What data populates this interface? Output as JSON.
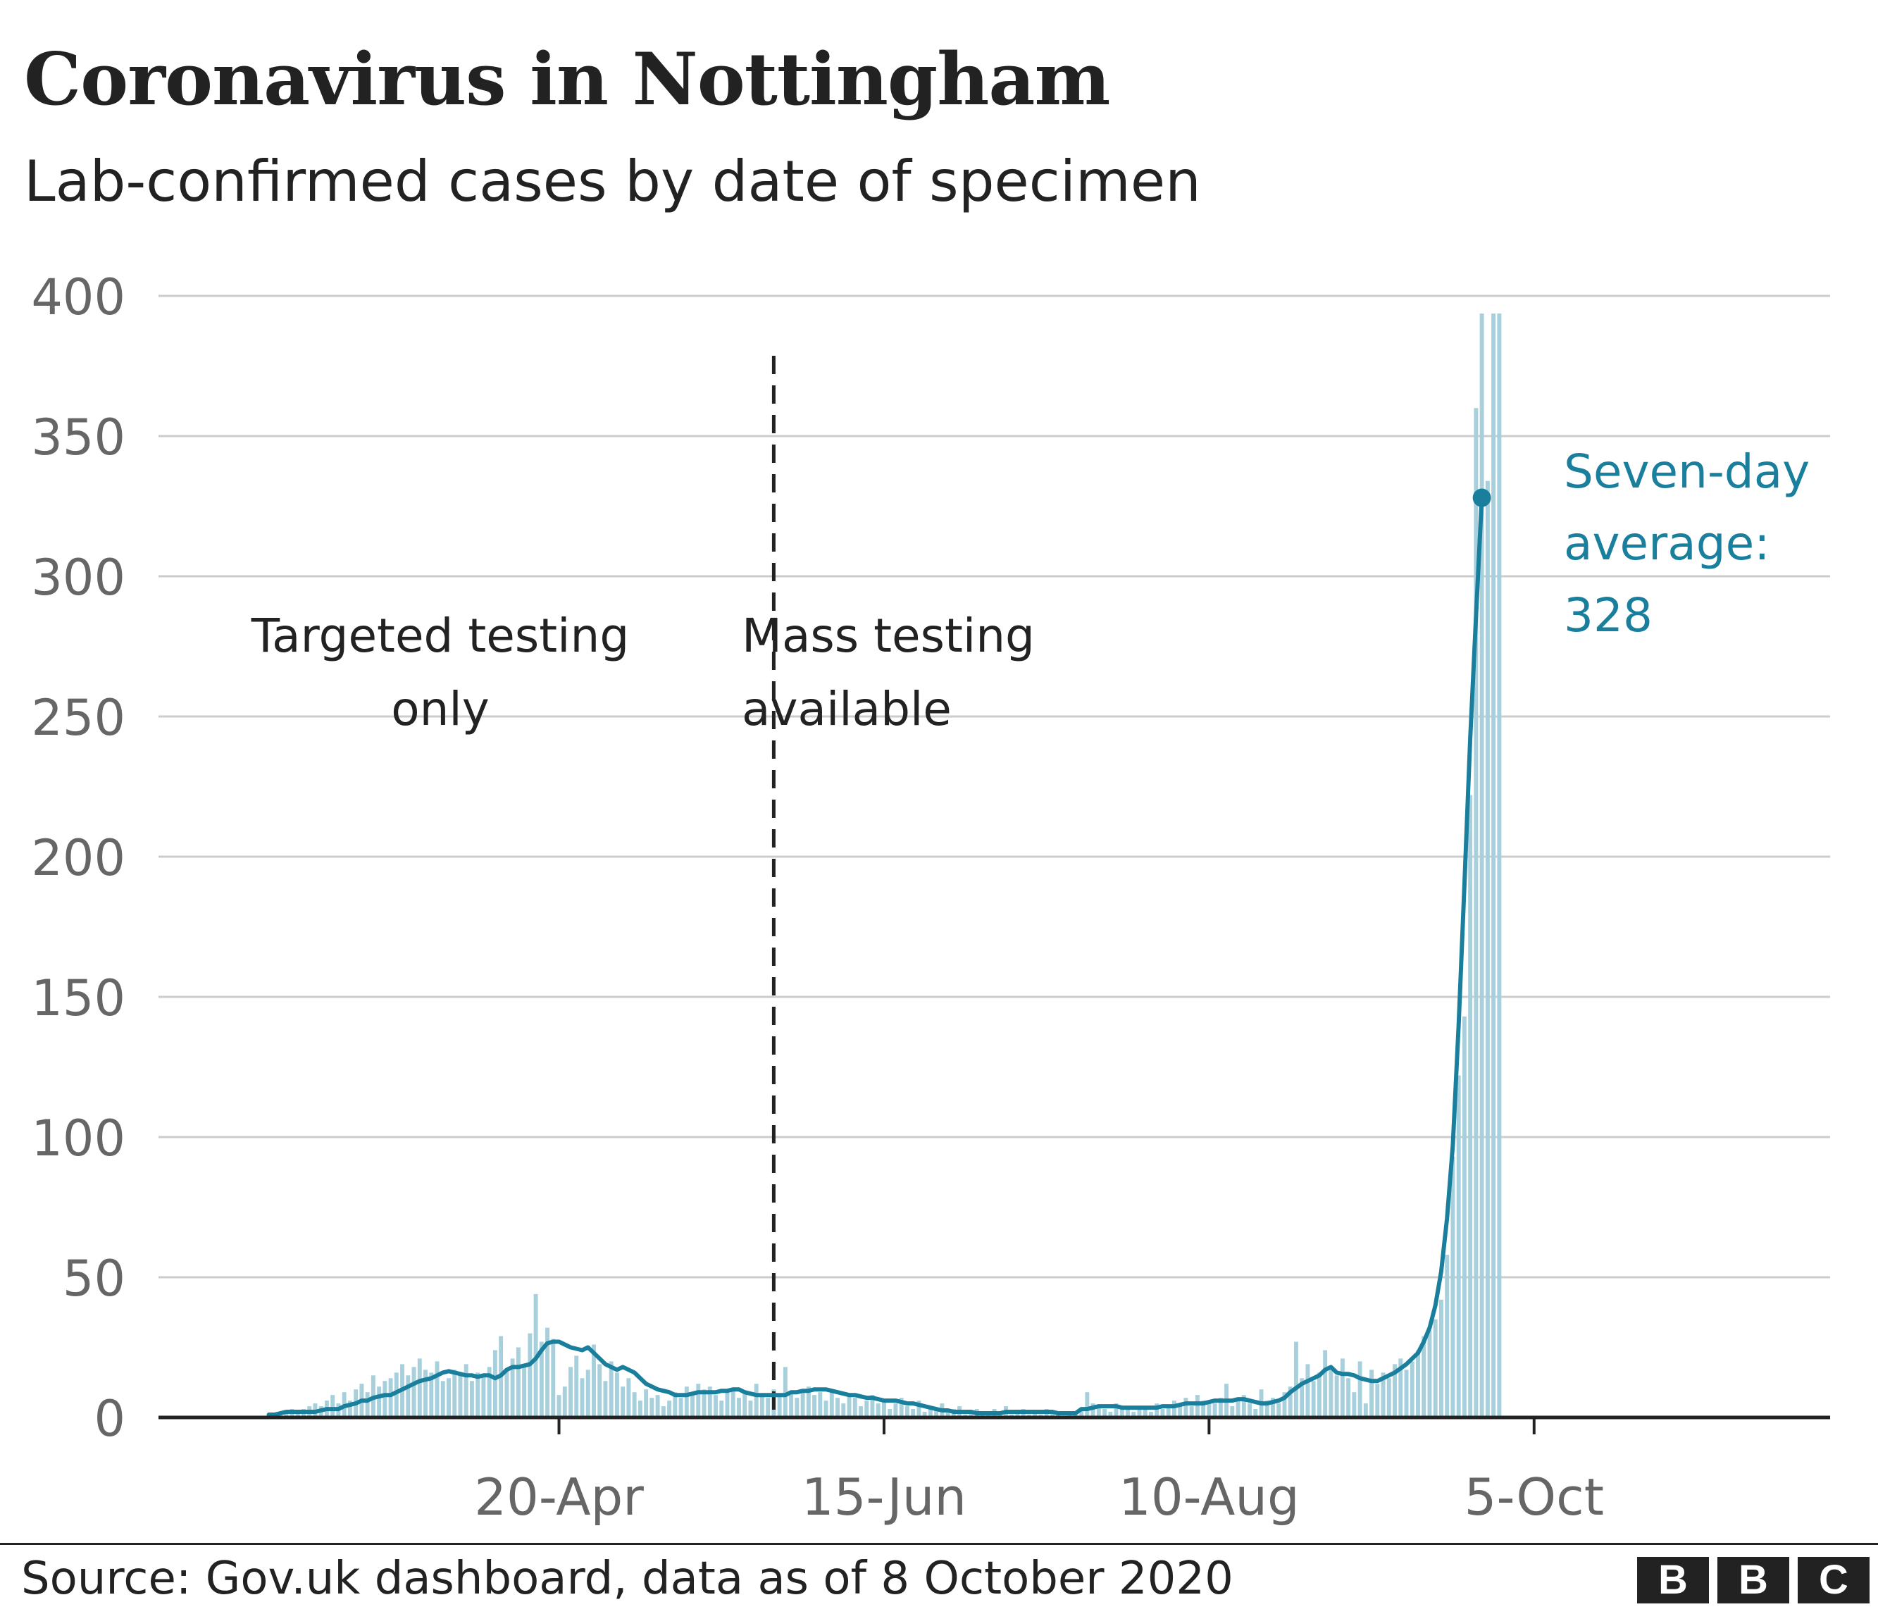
{
  "title": "Coronavirus in Nottingham",
  "subtitle": "Lab-confirmed cases by date of specimen",
  "source": "Source: Gov.uk dashboard, data as of 8 October 2020",
  "logo": [
    "B",
    "B",
    "C"
  ],
  "colors": {
    "bars": "#a8d0dc",
    "average_line": "#1a7f9c",
    "text": "#222222",
    "axis_labels": "#666666",
    "grid": "#cccccc"
  },
  "chart_data": {
    "type": "bar",
    "x_start": "2020-03-01",
    "xlim": [
      "2020-02-11",
      "2020-11-25"
    ],
    "ylim": [
      0,
      400
    ],
    "yticks": [
      0,
      50,
      100,
      150,
      200,
      250,
      300,
      350,
      400
    ],
    "xticks": [
      {
        "date": "2020-04-20",
        "label": "20-Apr"
      },
      {
        "date": "2020-06-15",
        "label": "15-Jun"
      },
      {
        "date": "2020-08-10",
        "label": "10-Aug"
      },
      {
        "date": "2020-10-05",
        "label": "5-Oct"
      }
    ],
    "grid": true,
    "series": [
      {
        "name": "Daily cases",
        "kind": "bar",
        "values": [
          1,
          1,
          2,
          2,
          3,
          2,
          3,
          4,
          5,
          4,
          6,
          8,
          5,
          9,
          6,
          10,
          12,
          9,
          15,
          11,
          13,
          14,
          16,
          19,
          15,
          18,
          21,
          17,
          16,
          20,
          13,
          14,
          17,
          15,
          19,
          13,
          16,
          15,
          18,
          24,
          29,
          17,
          21,
          25,
          18,
          30,
          44,
          27,
          32,
          28,
          8,
          11,
          18,
          22,
          14,
          17,
          26,
          19,
          13,
          20,
          16,
          11,
          14,
          9,
          6,
          10,
          7,
          8,
          4,
          6,
          9,
          7,
          11,
          8,
          12,
          10,
          11,
          8,
          6,
          9,
          10,
          7,
          9,
          6,
          12,
          8,
          7,
          10,
          8,
          18,
          9,
          7,
          10,
          11,
          8,
          9,
          6,
          10,
          7,
          5,
          8,
          7,
          4,
          6,
          8,
          5,
          6,
          3,
          5,
          7,
          4,
          3,
          6,
          2,
          4,
          3,
          5,
          2,
          3,
          4,
          1,
          2,
          3,
          2,
          1,
          3,
          2,
          4,
          1,
          2,
          3,
          1,
          2,
          1,
          3,
          2,
          1,
          0,
          2,
          1,
          3,
          9,
          5,
          4,
          3,
          2,
          5,
          3,
          4,
          2,
          3,
          4,
          2,
          5,
          3,
          4,
          6,
          5,
          7,
          4,
          8,
          6,
          5,
          5,
          7,
          12,
          4,
          6,
          8,
          5,
          3,
          10,
          6,
          7,
          5,
          9,
          11,
          27,
          14,
          19,
          13,
          16,
          24,
          18,
          15,
          21,
          14,
          9,
          20,
          5,
          17,
          12,
          16,
          14,
          19,
          21,
          17,
          20,
          24,
          29,
          31,
          35,
          42,
          58,
          93,
          122,
          143,
          222,
          360,
          413,
          334,
          406,
          413
        ]
      },
      {
        "name": "Seven-day average",
        "kind": "line",
        "values": [
          1,
          1,
          1.5,
          2,
          2,
          2,
          2,
          2,
          2,
          2.5,
          3,
          3,
          3,
          4,
          4.5,
          5,
          6,
          6,
          7,
          7.5,
          8,
          8,
          9,
          10,
          11,
          12,
          13,
          13.5,
          14,
          15,
          16,
          16.5,
          16,
          15.5,
          15,
          15,
          14.5,
          15,
          15,
          14,
          15,
          17,
          18,
          18,
          18.5,
          19,
          21,
          24,
          26.5,
          27,
          27,
          26,
          25,
          24.5,
          24,
          25,
          23,
          21,
          19,
          18,
          17,
          18,
          17,
          16,
          14,
          12,
          11,
          10,
          9.5,
          9,
          8,
          8,
          8,
          8.5,
          9,
          9,
          9,
          9,
          9.5,
          9.5,
          10,
          10,
          9,
          8.5,
          8,
          8,
          8,
          8,
          8,
          8,
          9,
          9,
          9.5,
          9.5,
          10,
          10,
          10,
          9.5,
          9,
          8.5,
          8,
          8,
          7.5,
          7,
          7,
          6.5,
          6,
          6,
          6,
          5.5,
          5,
          5,
          4.5,
          4,
          3.5,
          3,
          2.5,
          2.5,
          2,
          2,
          2,
          2,
          1.5,
          1.5,
          1.5,
          1.5,
          1.5,
          2,
          2,
          2,
          2,
          2,
          2,
          2,
          2,
          2,
          1.5,
          1.5,
          1.5,
          1.5,
          3,
          3,
          3.5,
          4,
          4,
          4,
          4,
          3.5,
          3.5,
          3.5,
          3.5,
          3.5,
          3.5,
          3.5,
          4,
          4,
          4,
          4.5,
          5,
          5,
          5,
          5,
          5.5,
          6,
          6,
          6,
          6,
          6.5,
          6.5,
          6,
          5.5,
          5,
          5,
          5.5,
          6,
          7,
          9,
          10.5,
          12,
          13,
          14,
          15,
          17,
          18,
          16,
          15.5,
          15.5,
          15,
          14,
          13.5,
          13,
          13,
          14,
          15,
          16,
          17.5,
          19,
          21,
          23,
          27,
          32,
          40,
          52,
          71,
          97,
          140,
          190,
          242,
          286,
          328
        ]
      }
    ],
    "vertical_line": {
      "date": "2020-05-27",
      "style": "dashed"
    },
    "annotations": [
      {
        "lines": [
          "Targeted testing",
          "only"
        ]
      },
      {
        "lines": [
          "Mass testing",
          "available"
        ]
      },
      {
        "lines": [
          "Seven-day",
          "average:",
          "328"
        ]
      }
    ]
  }
}
